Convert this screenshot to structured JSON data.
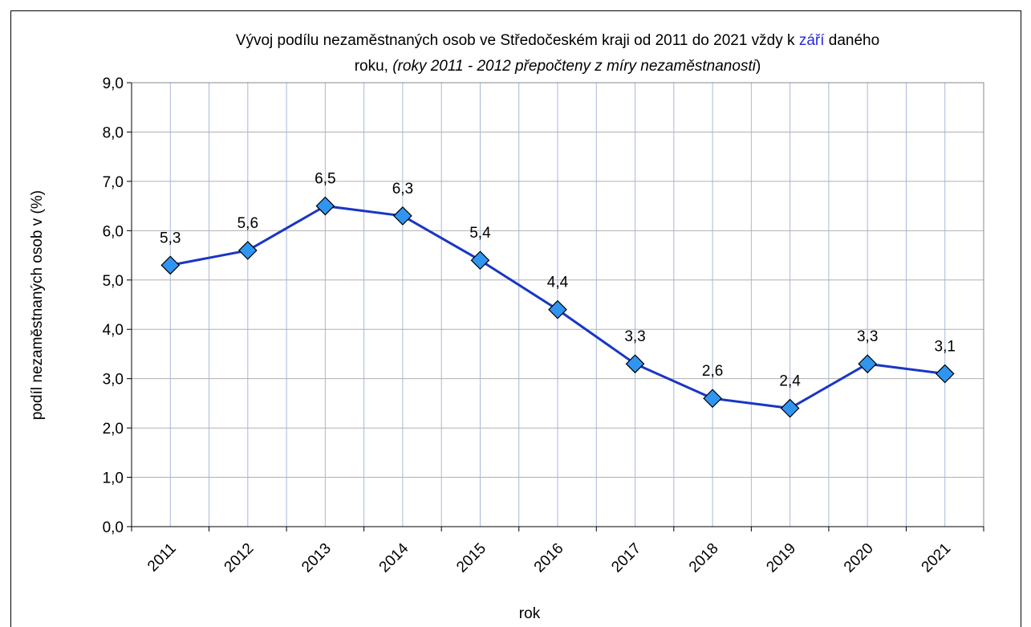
{
  "chart_data": {
    "type": "line",
    "title": [
      "Vývoj podílu nezaměstnaných osob ve Středočeském kraji od 2011 do 2021 vždy k ",
      "září",
      " daného",
      "roku, ",
      "(roky 2011 - 2012 přepočteny z míry nezaměstnanosti",
      ")"
    ],
    "x_label": "rok",
    "y_label": "podíl nezaměstnaných osob v (%)",
    "categories": [
      "2011",
      "2012",
      "2013",
      "2014",
      "2015",
      "2016",
      "2017",
      "2018",
      "2019",
      "2020",
      "2021"
    ],
    "series": [
      {
        "name": "podíl nezaměstnaných osob",
        "color": "#1a36c4",
        "marker_color": "#2f95f0",
        "values": [
          5.3,
          5.6,
          6.5,
          6.3,
          5.4,
          4.4,
          3.3,
          2.6,
          2.4,
          3.3,
          3.1
        ],
        "value_labels": [
          "5,3",
          "5,6",
          "6,5",
          "6,3",
          "5,4",
          "4,4",
          "3,3",
          "2,6",
          "2,4",
          "3,3",
          "3,1"
        ]
      }
    ],
    "ylim": [
      0,
      9
    ],
    "yticks": [
      {
        "value": 0,
        "label": "0,0"
      },
      {
        "value": 1,
        "label": "1,0"
      },
      {
        "value": 2,
        "label": "2,0"
      },
      {
        "value": 3,
        "label": "3,0"
      },
      {
        "value": 4,
        "label": "4,0"
      },
      {
        "value": 5,
        "label": "5,0"
      },
      {
        "value": 6,
        "label": "6,0"
      },
      {
        "value": 7,
        "label": "7,0"
      },
      {
        "value": 8,
        "label": "8,0"
      },
      {
        "value": 9,
        "label": "9,0"
      }
    ],
    "grid": true
  }
}
